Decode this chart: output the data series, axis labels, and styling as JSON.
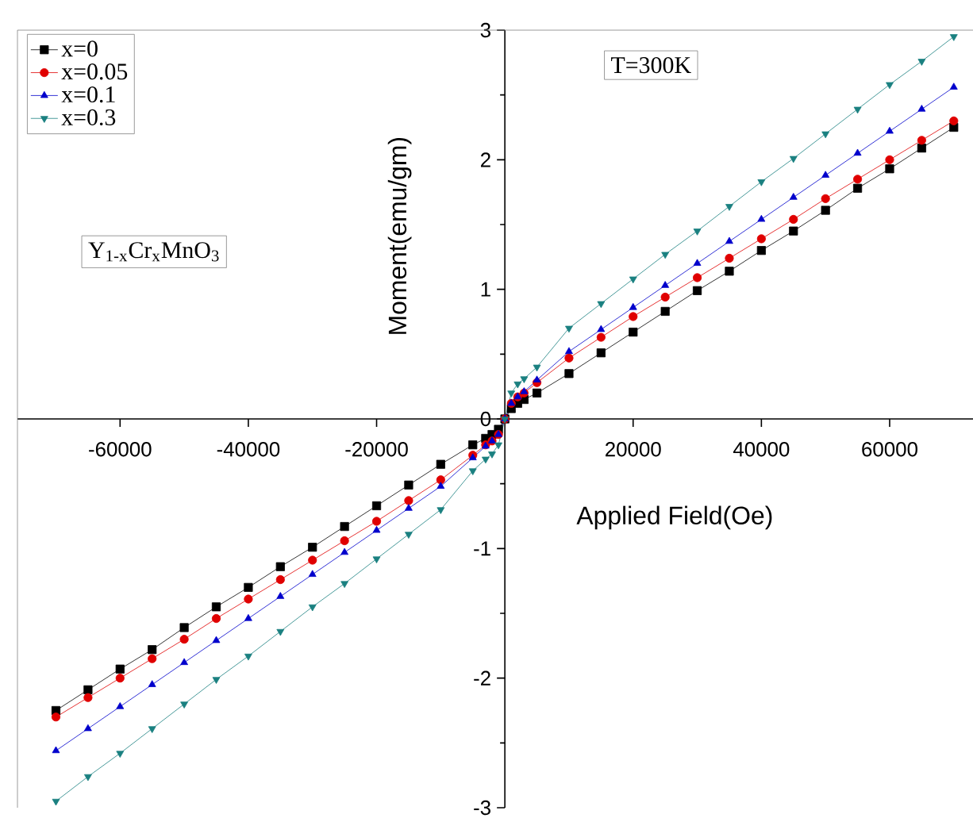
{
  "chart_data": {
    "type": "line",
    "xlabel": "Applied Field(Oe)",
    "ylabel": "Moment(emu/gm)",
    "annotations": [
      "T=300K",
      "Y$_{1-x}$Cr$_{x}$MnO$_{3}$"
    ],
    "x": [
      -70000,
      -65000,
      -60000,
      -55000,
      -50000,
      -45000,
      -40000,
      -35000,
      -30000,
      -25000,
      -20000,
      -15000,
      -10000,
      -5000,
      -3000,
      -2000,
      -1000,
      0,
      1000,
      2000,
      3000,
      5000,
      10000,
      15000,
      20000,
      25000,
      30000,
      35000,
      40000,
      45000,
      50000,
      55000,
      60000,
      65000,
      70000
    ],
    "series": [
      {
        "name": "x=0",
        "color": "#000000",
        "marker": "square",
        "values": [
          -2.25,
          -2.09,
          -1.93,
          -1.78,
          -1.61,
          -1.45,
          -1.3,
          -1.14,
          -0.99,
          -0.83,
          -0.67,
          -0.51,
          -0.35,
          -0.2,
          -0.15,
          -0.12,
          -0.08,
          0,
          0.08,
          0.12,
          0.15,
          0.2,
          0.35,
          0.51,
          0.67,
          0.83,
          0.99,
          1.14,
          1.3,
          1.45,
          1.61,
          1.78,
          1.93,
          2.09,
          2.25
        ]
      },
      {
        "name": "x=0.05",
        "color": "#e00000",
        "marker": "circle",
        "values": [
          -2.3,
          -2.15,
          -2.0,
          -1.85,
          -1.7,
          -1.54,
          -1.39,
          -1.24,
          -1.09,
          -0.94,
          -0.79,
          -0.63,
          -0.47,
          -0.28,
          -0.2,
          -0.17,
          -0.12,
          0,
          0.12,
          0.17,
          0.2,
          0.28,
          0.47,
          0.63,
          0.79,
          0.94,
          1.09,
          1.24,
          1.39,
          1.54,
          1.7,
          1.85,
          2.0,
          2.15,
          2.3
        ]
      },
      {
        "name": "x=0.1",
        "color": "#0000cc",
        "marker": "triangle",
        "values": [
          -2.56,
          -2.39,
          -2.22,
          -2.05,
          -1.88,
          -1.71,
          -1.54,
          -1.37,
          -1.2,
          -1.03,
          -0.86,
          -0.69,
          -0.52,
          -0.3,
          -0.21,
          -0.17,
          -0.12,
          0,
          0.12,
          0.17,
          0.21,
          0.3,
          0.52,
          0.69,
          0.86,
          1.03,
          1.2,
          1.37,
          1.54,
          1.71,
          1.88,
          2.05,
          2.22,
          2.39,
          2.56
        ]
      },
      {
        "name": "x=0.3",
        "color": "#1a8080",
        "marker": "triangle-down",
        "values": [
          -2.95,
          -2.76,
          -2.58,
          -2.39,
          -2.2,
          -2.01,
          -1.83,
          -1.64,
          -1.45,
          -1.27,
          -1.08,
          -0.89,
          -0.7,
          -0.4,
          -0.31,
          -0.27,
          -0.2,
          0,
          0.2,
          0.27,
          0.31,
          0.4,
          0.7,
          0.89,
          1.08,
          1.27,
          1.45,
          1.64,
          1.83,
          2.01,
          2.2,
          2.39,
          2.58,
          2.76,
          2.95
        ]
      }
    ],
    "xlim": [
      -76000,
      73000
    ],
    "ylim": [
      -3,
      3
    ],
    "xticks": [
      -60000,
      -40000,
      -20000,
      20000,
      40000,
      60000
    ],
    "yticks": [
      -3,
      -2,
      -1,
      0,
      1,
      2,
      3
    ],
    "legend": "top left",
    "line_style": "solid"
  }
}
